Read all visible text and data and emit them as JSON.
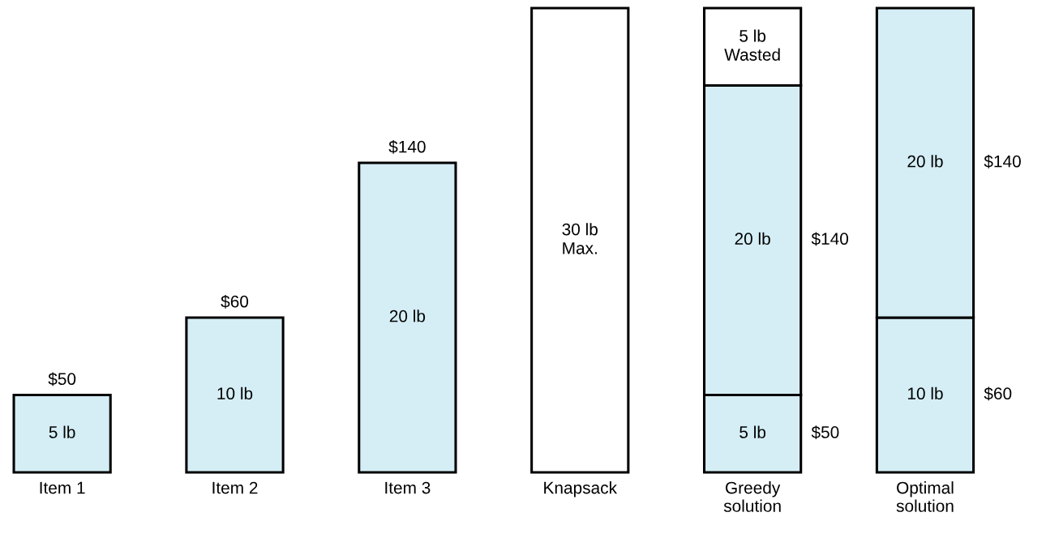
{
  "chart_data": {
    "type": "bar",
    "stacked": true,
    "grid": false,
    "legend": false,
    "categories": [
      "Item 1",
      "Item 2",
      "Item 3",
      "Knapsack",
      "Greedy\nsolution",
      "Optimal\nsolution"
    ],
    "series": [
      {
        "colors": [
          "#d5eef5",
          "#d5eef5",
          "#d5eef5",
          "#ffffff",
          "#d5eef5",
          "#d5eef5"
        ],
        "values": [
          5,
          10,
          20,
          30,
          5,
          10
        ],
        "value_labels": [
          "5 lb",
          "10 lb",
          "20 lb",
          "30 lb\nMax.",
          "5 lb",
          "10 lb"
        ]
      },
      {
        "color": "#d5eef5",
        "values": [
          null,
          null,
          null,
          null,
          20,
          20
        ],
        "value_labels": [
          null,
          null,
          null,
          null,
          "20 lb",
          "20 lb"
        ]
      },
      {
        "color": "#ffffff",
        "values": [
          null,
          null,
          null,
          null,
          5,
          null
        ],
        "value_labels": [
          null,
          null,
          null,
          null,
          "5 lb\nWasted",
          null
        ]
      }
    ],
    "annotations": [
      {
        "text": "$50",
        "x": "Item 1",
        "y": 5
      },
      {
        "text": "$60",
        "x": "Item 2",
        "y": 10
      },
      {
        "text": "$140",
        "x": "Item 3",
        "y": 20
      },
      "$140",
      "$50",
      "$140",
      "$60"
    ]
  }
}
